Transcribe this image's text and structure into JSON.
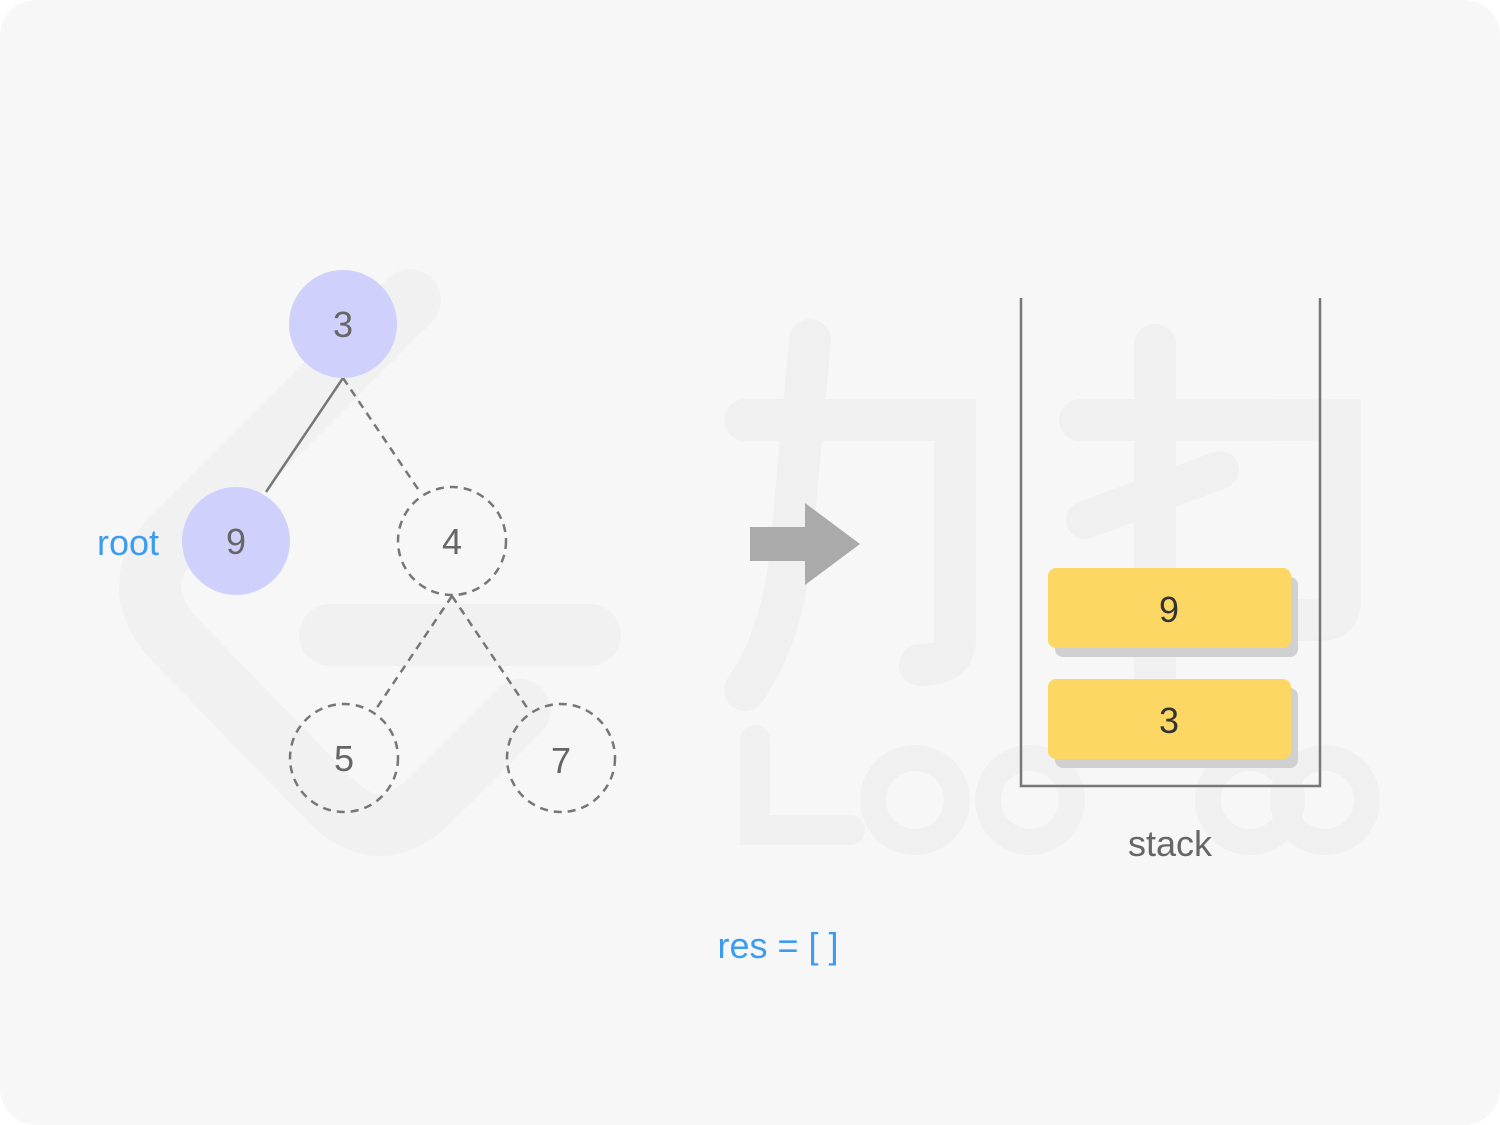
{
  "tree": {
    "nodes": {
      "n3": "3",
      "n9": "9",
      "n4": "4",
      "n5": "5",
      "n7": "7"
    },
    "pointer_label": "root"
  },
  "stack": {
    "label": "stack",
    "items": [
      "9",
      "3"
    ]
  },
  "result": {
    "text": "res = [ ]"
  },
  "colors": {
    "background": "#f7f7f7",
    "visited_node": "#d0d0fc",
    "item_fill": "#fdd764",
    "item_shadow": "#d0d0d0",
    "accent_blue": "#3c9cf1",
    "arrow": "#aaaaaa",
    "line": "#777777"
  }
}
